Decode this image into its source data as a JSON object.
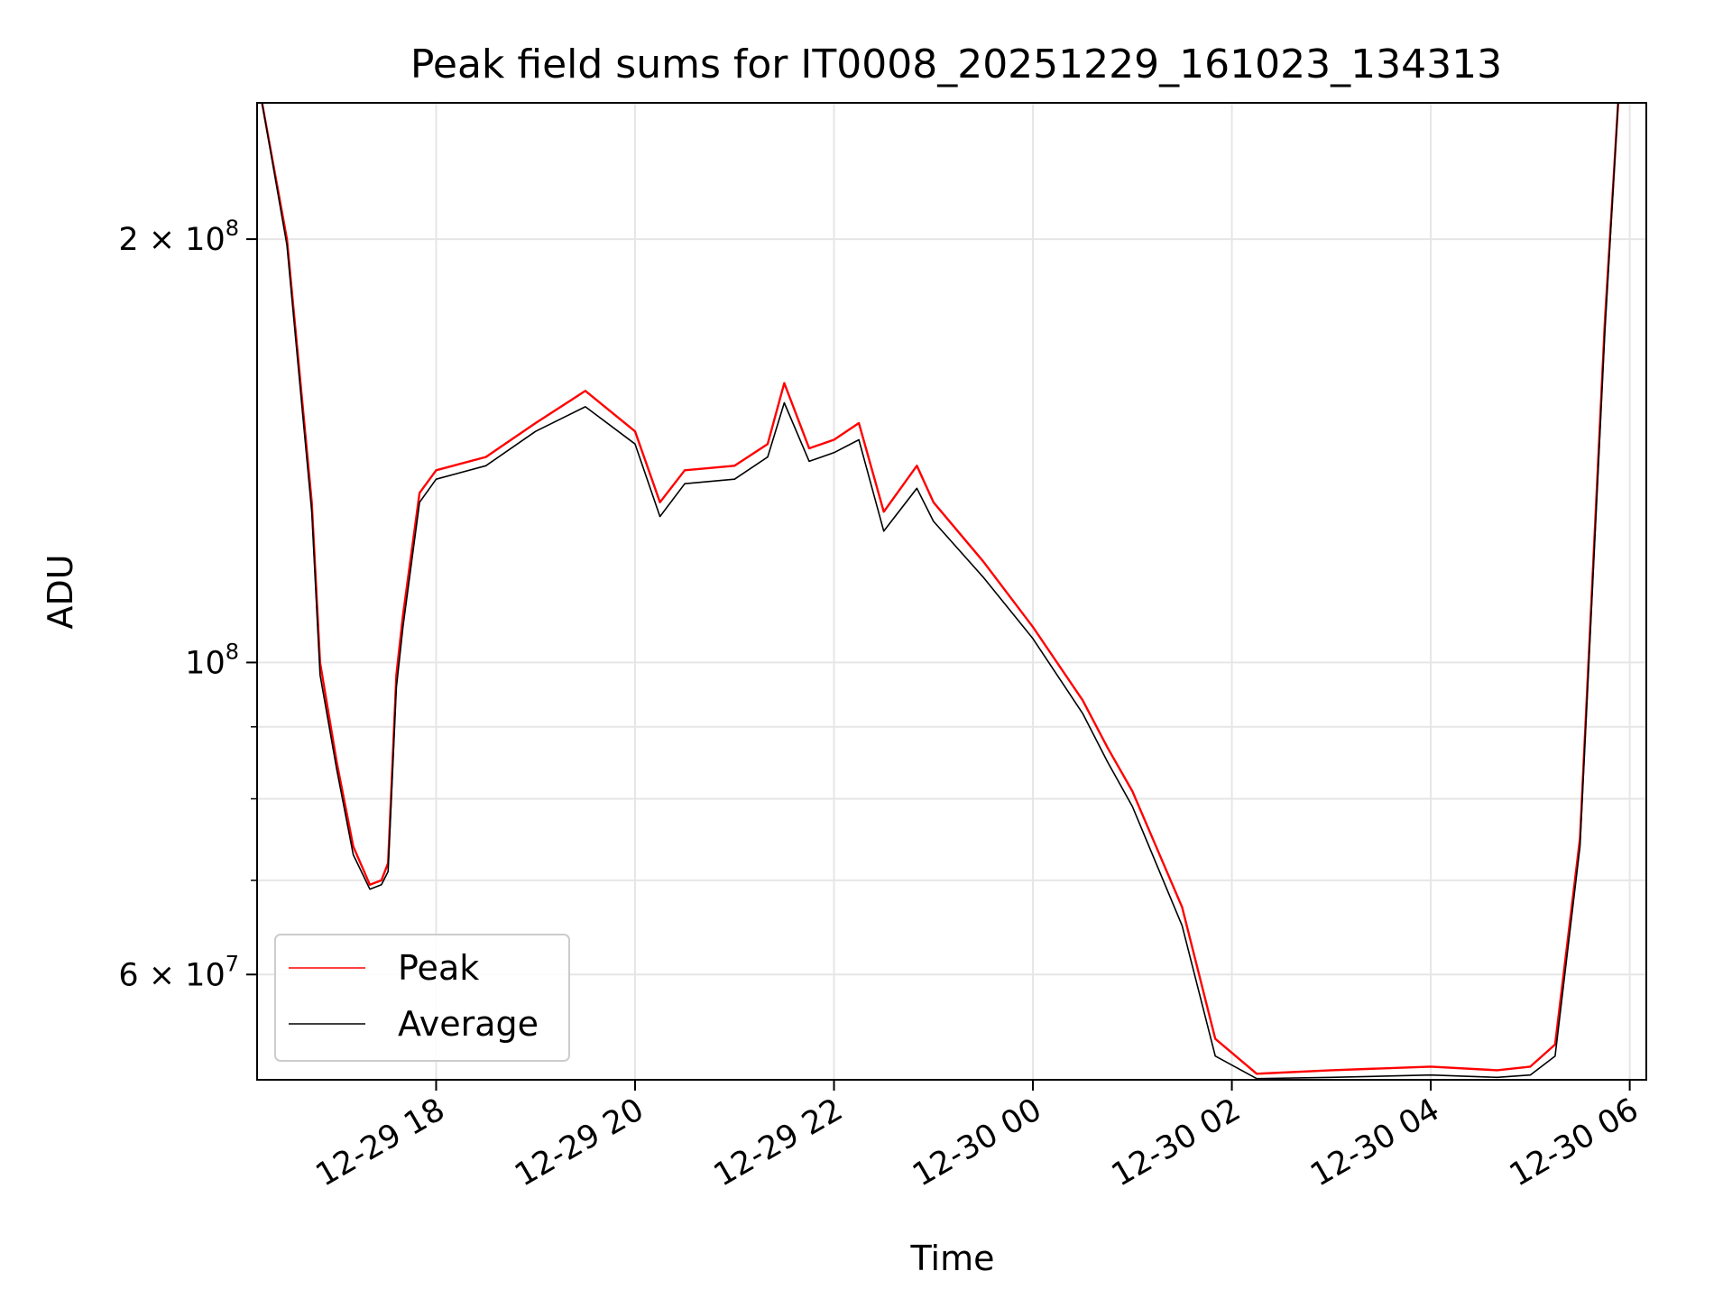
{
  "chart_data": {
    "type": "line",
    "title": "Peak field sums for IT0008_20251229_161023_134313",
    "xlabel": "Time",
    "ylabel": "ADU",
    "yscale": "log",
    "ylim": [
      50500000,
      250000000
    ],
    "xlim": [
      "2025-12-29 16:12",
      "2025-12-30 06:10"
    ],
    "grid": true,
    "legend_position": "lower-left",
    "x_ticks": [
      "12-29 18",
      "12-29 20",
      "12-29 22",
      "12-30 00",
      "12-30 02",
      "12-30 04",
      "12-30 06"
    ],
    "x_tick_values": [
      "2025-12-29 18:00",
      "2025-12-29 20:00",
      "2025-12-29 22:00",
      "2025-12-30 00:00",
      "2025-12-30 02:00",
      "2025-12-30 04:00",
      "2025-12-30 06:00"
    ],
    "y_ticks_major": [
      {
        "value": 200000000,
        "mantissa": "2",
        "exp": "8"
      },
      {
        "value": 100000000,
        "mantissa": "",
        "exp": "8"
      },
      {
        "value": 60000000,
        "mantissa": "6",
        "exp": "7"
      }
    ],
    "y_ticks_minor": [
      300000000,
      90000000,
      80000000,
      70000000,
      50000000
    ],
    "series": [
      {
        "name": "Peak",
        "color": "#ff0000",
        "x": [
          "2025-12-29 16:15",
          "2025-12-29 16:30",
          "2025-12-29 16:45",
          "2025-12-29 16:50",
          "2025-12-29 17:00",
          "2025-12-29 17:10",
          "2025-12-29 17:20",
          "2025-12-29 17:27",
          "2025-12-29 17:31",
          "2025-12-29 17:36",
          "2025-12-29 17:40",
          "2025-12-29 17:50",
          "2025-12-29 18:00",
          "2025-12-29 18:30",
          "2025-12-29 19:00",
          "2025-12-29 19:30",
          "2025-12-29 20:00",
          "2025-12-29 20:15",
          "2025-12-29 20:30",
          "2025-12-29 21:00",
          "2025-12-29 21:20",
          "2025-12-29 21:30",
          "2025-12-29 21:45",
          "2025-12-29 22:00",
          "2025-12-29 22:15",
          "2025-12-29 22:30",
          "2025-12-29 22:50",
          "2025-12-29 23:00",
          "2025-12-29 23:30",
          "2025-12-30 00:00",
          "2025-12-30 00:30",
          "2025-12-30 00:45",
          "2025-12-30 01:00",
          "2025-12-30 01:30",
          "2025-12-30 01:50",
          "2025-12-30 02:15",
          "2025-12-30 03:00",
          "2025-12-30 04:00",
          "2025-12-30 04:40",
          "2025-12-30 05:00",
          "2025-12-30 05:15",
          "2025-12-30 05:30",
          "2025-12-30 05:45",
          "2025-12-30 05:53"
        ],
        "values": [
          250000000,
          200000000,
          130000000,
          100000000,
          85000000,
          74000000,
          69500000,
          70000000,
          72000000,
          98000000,
          108000000,
          132000000,
          137000000,
          140000000,
          148000000,
          156000000,
          146000000,
          130000000,
          137000000,
          138000000,
          143000000,
          158000000,
          142000000,
          144000000,
          148000000,
          128000000,
          138000000,
          130000000,
          118000000,
          106000000,
          94000000,
          87000000,
          81000000,
          67000000,
          54000000,
          51000000,
          51300000,
          51600000,
          51300000,
          51600000,
          53500000,
          75000000,
          175000000,
          250000000
        ]
      },
      {
        "name": "Average",
        "color": "#000000",
        "x": [
          "2025-12-29 16:15",
          "2025-12-29 16:30",
          "2025-12-29 16:45",
          "2025-12-29 16:50",
          "2025-12-29 17:00",
          "2025-12-29 17:10",
          "2025-12-29 17:20",
          "2025-12-29 17:27",
          "2025-12-29 17:31",
          "2025-12-29 17:36",
          "2025-12-29 17:40",
          "2025-12-29 17:50",
          "2025-12-29 18:00",
          "2025-12-29 18:30",
          "2025-12-29 19:00",
          "2025-12-29 19:30",
          "2025-12-29 20:00",
          "2025-12-29 20:15",
          "2025-12-29 20:30",
          "2025-12-29 21:00",
          "2025-12-29 21:20",
          "2025-12-29 21:30",
          "2025-12-29 21:45",
          "2025-12-29 22:00",
          "2025-12-29 22:15",
          "2025-12-29 22:30",
          "2025-12-29 22:50",
          "2025-12-29 23:00",
          "2025-12-29 23:30",
          "2025-12-30 00:00",
          "2025-12-30 00:30",
          "2025-12-30 00:45",
          "2025-12-30 01:00",
          "2025-12-30 01:30",
          "2025-12-30 01:50",
          "2025-12-30 02:15",
          "2025-12-30 03:00",
          "2025-12-30 04:00",
          "2025-12-30 04:40",
          "2025-12-30 05:00",
          "2025-12-30 05:15",
          "2025-12-30 05:30",
          "2025-12-30 05:45",
          "2025-12-30 05:53"
        ],
        "values": [
          250000000,
          198000000,
          128000000,
          98000000,
          84000000,
          73000000,
          69000000,
          69500000,
          71000000,
          96000000,
          106000000,
          130000000,
          135000000,
          138000000,
          146000000,
          152000000,
          143000000,
          127000000,
          134000000,
          135000000,
          140000000,
          153000000,
          139000000,
          141000000,
          144000000,
          124000000,
          133000000,
          126000000,
          115000000,
          104000000,
          92000000,
          85000000,
          79000000,
          65000000,
          52500000,
          50600000,
          50700000,
          50900000,
          50700000,
          50900000,
          52500000,
          74000000,
          172000000,
          250000000
        ]
      }
    ]
  }
}
